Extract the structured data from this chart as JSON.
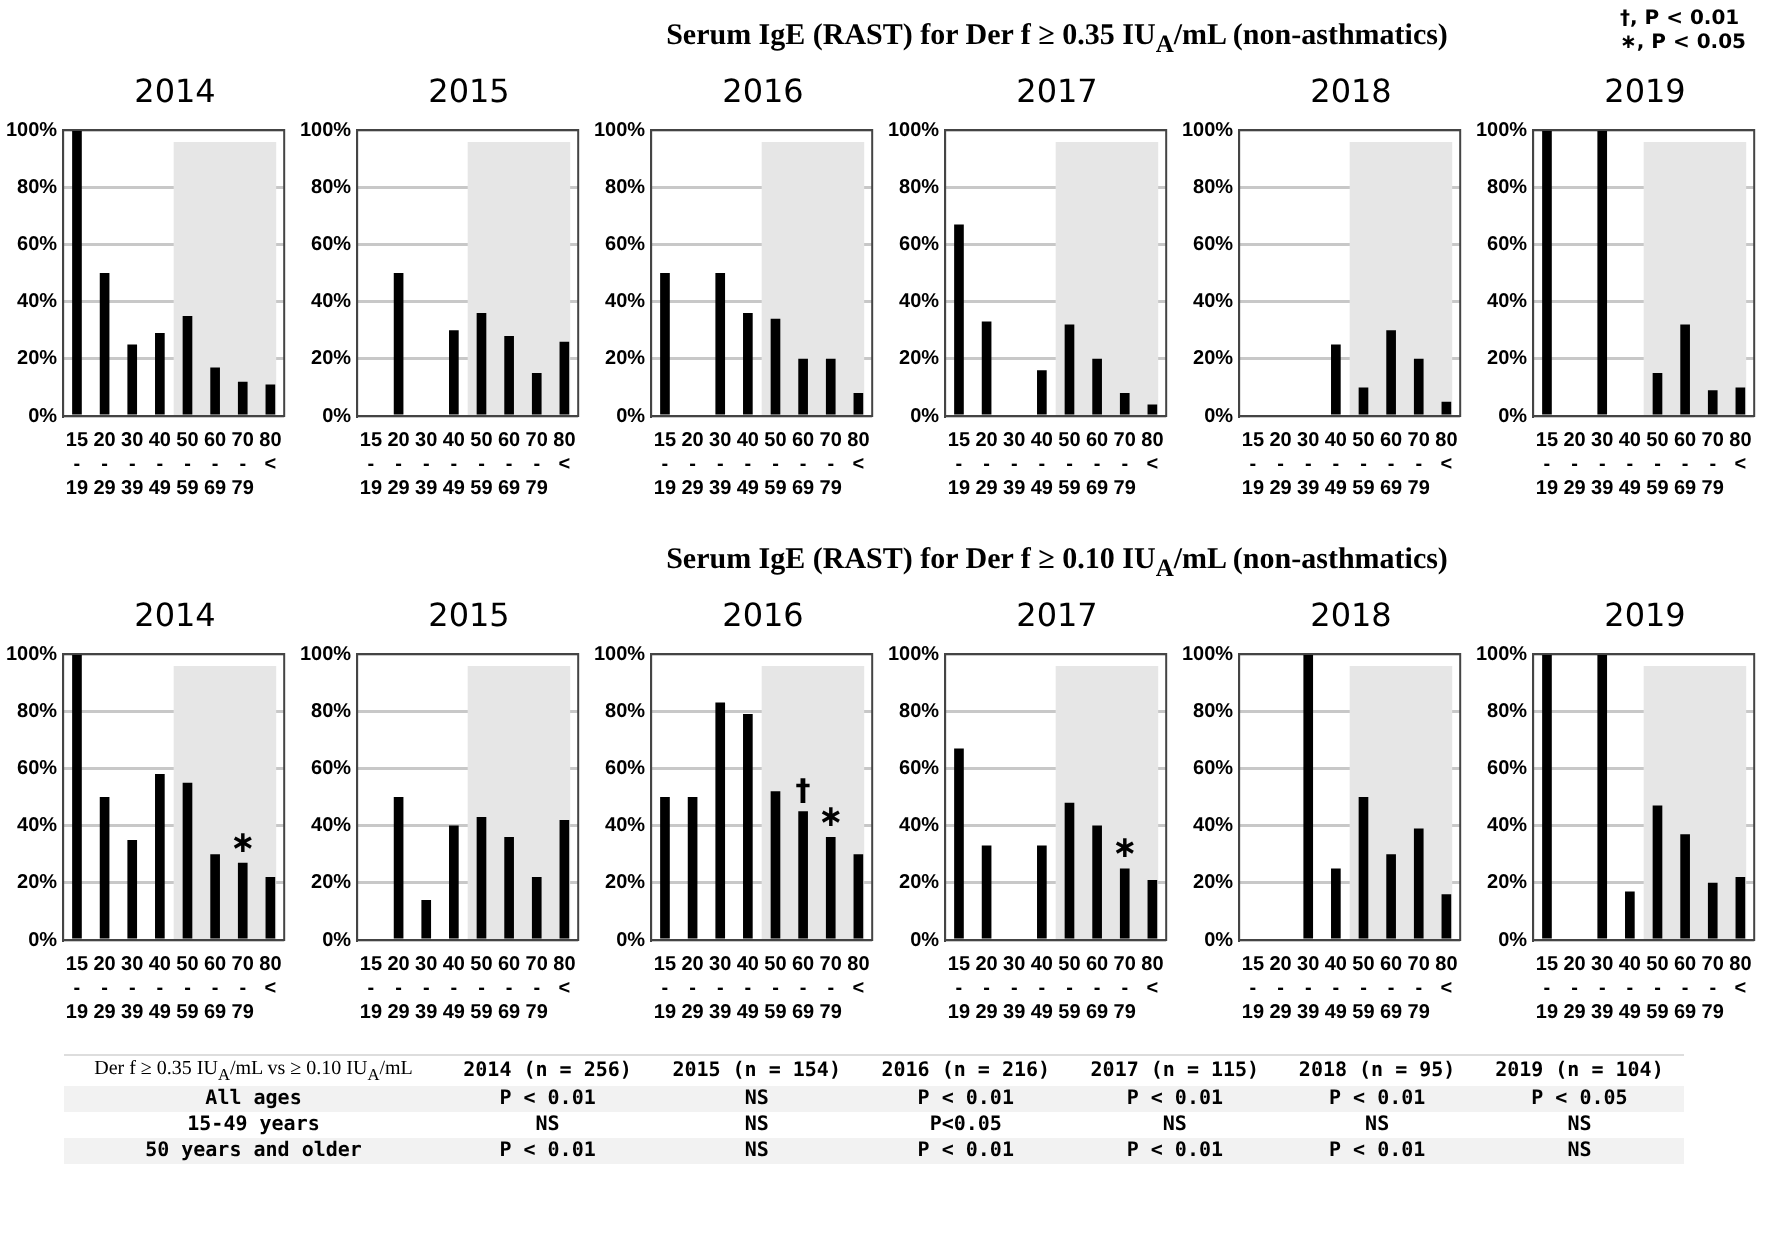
{
  "chart_data": [
    {
      "type": "bar",
      "title": "2014",
      "categories": [
        "15-19",
        "20-29",
        "30-39",
        "40-49",
        "50-59",
        "60-69",
        "70-79",
        "80<"
      ],
      "values": [
        100,
        50,
        25,
        29,
        35,
        17,
        12,
        11
      ],
      "color": "#000000",
      "ylim": [
        0,
        100
      ],
      "yticks": [
        {
          "value": 0,
          "label": "0%"
        },
        {
          "value": 20,
          "label": "20%"
        },
        {
          "value": 40,
          "label": "40%"
        },
        {
          "value": 60,
          "label": "60%"
        },
        {
          "value": 80,
          "label": "80%"
        },
        {
          "value": 100,
          "label": "100%"
        }
      ],
      "grid": "y",
      "bands": [
        {
          "axis": "x",
          "from": "50-59",
          "to": "80<",
          "color": "#e6e6e6"
        }
      ]
    },
    {
      "type": "bar",
      "title": "2015",
      "categories": [
        "15-19",
        "20-29",
        "30-39",
        "40-49",
        "50-59",
        "60-69",
        "70-79",
        "80<"
      ],
      "values": [
        0,
        50,
        0,
        30,
        36,
        28,
        15,
        26
      ],
      "color": "#000000",
      "ylim": [
        0,
        100
      ],
      "yticks": [
        {
          "value": 0,
          "label": "0%"
        },
        {
          "value": 20,
          "label": "20%"
        },
        {
          "value": 40,
          "label": "40%"
        },
        {
          "value": 60,
          "label": "60%"
        },
        {
          "value": 80,
          "label": "80%"
        },
        {
          "value": 100,
          "label": "100%"
        }
      ],
      "grid": "y",
      "bands": [
        {
          "axis": "x",
          "from": "50-59",
          "to": "80<",
          "color": "#e6e6e6"
        }
      ]
    },
    {
      "type": "bar",
      "title": "2016",
      "categories": [
        "15-19",
        "20-29",
        "30-39",
        "40-49",
        "50-59",
        "60-69",
        "70-79",
        "80<"
      ],
      "values": [
        50,
        0,
        50,
        36,
        34,
        20,
        20,
        8
      ],
      "color": "#000000",
      "ylim": [
        0,
        100
      ],
      "yticks": [
        {
          "value": 0,
          "label": "0%"
        },
        {
          "value": 20,
          "label": "20%"
        },
        {
          "value": 40,
          "label": "40%"
        },
        {
          "value": 60,
          "label": "60%"
        },
        {
          "value": 80,
          "label": "80%"
        },
        {
          "value": 100,
          "label": "100%"
        }
      ],
      "grid": "y",
      "bands": [
        {
          "axis": "x",
          "from": "50-59",
          "to": "80<",
          "color": "#e6e6e6"
        }
      ]
    },
    {
      "type": "bar",
      "title": "2017",
      "subtitle": "Serum IgE (RAST) for Der f ≥ 0.35 IU$_{A}$/mL (non-asthmatics)",
      "categories": [
        "15-19",
        "20-29",
        "30-39",
        "40-49",
        "50-59",
        "60-69",
        "70-79",
        "80<"
      ],
      "values": [
        67,
        33,
        0,
        16,
        32,
        20,
        8,
        4
      ],
      "color": "#000000",
      "ylim": [
        0,
        100
      ],
      "yticks": [
        {
          "value": 0,
          "label": "0%"
        },
        {
          "value": 20,
          "label": "20%"
        },
        {
          "value": 40,
          "label": "40%"
        },
        {
          "value": 60,
          "label": "60%"
        },
        {
          "value": 80,
          "label": "80%"
        },
        {
          "value": 100,
          "label": "100%"
        }
      ],
      "grid": "y",
      "bands": [
        {
          "axis": "x",
          "from": "50-59",
          "to": "80<",
          "color": "#e6e6e6"
        }
      ]
    },
    {
      "type": "bar",
      "title": "2018",
      "categories": [
        "15-19",
        "20-29",
        "30-39",
        "40-49",
        "50-59",
        "60-69",
        "70-79",
        "80<"
      ],
      "values": [
        0,
        0,
        0,
        25,
        10,
        30,
        20,
        5
      ],
      "color": "#000000",
      "ylim": [
        0,
        100
      ],
      "yticks": [
        {
          "value": 0,
          "label": "0%"
        },
        {
          "value": 20,
          "label": "20%"
        },
        {
          "value": 40,
          "label": "40%"
        },
        {
          "value": 60,
          "label": "60%"
        },
        {
          "value": 80,
          "label": "80%"
        },
        {
          "value": 100,
          "label": "100%"
        }
      ],
      "grid": "y",
      "bands": [
        {
          "axis": "x",
          "from": "50-59",
          "to": "80<",
          "color": "#e6e6e6"
        }
      ]
    },
    {
      "type": "bar",
      "title": "2019",
      "annotations": [
        "†, P < 0.01",
        "∗, P < 0.05"
      ],
      "categories": [
        "15-19",
        "20-29",
        "30-39",
        "40-49",
        "50-59",
        "60-69",
        "70-79",
        "80<"
      ],
      "values": [
        100,
        0,
        100,
        0,
        15,
        32,
        9,
        10
      ],
      "color": "#000000",
      "ylim": [
        0,
        100
      ],
      "yticks": [
        {
          "value": 0,
          "label": "0%"
        },
        {
          "value": 20,
          "label": "20%"
        },
        {
          "value": 40,
          "label": "40%"
        },
        {
          "value": 60,
          "label": "60%"
        },
        {
          "value": 80,
          "label": "80%"
        },
        {
          "value": 100,
          "label": "100%"
        }
      ],
      "grid": "y",
      "bands": [
        {
          "axis": "x",
          "from": "50-59",
          "to": "80<",
          "color": "#e6e6e6"
        }
      ]
    },
    {
      "type": "bar",
      "title": "2014",
      "annotations": [
        {
          "text": "∗",
          "x": "70-79",
          "y": 27
        }
      ],
      "categories": [
        "15-19",
        "20-29",
        "30-39",
        "40-49",
        "50-59",
        "60-69",
        "70-79",
        "80<"
      ],
      "values": [
        100,
        50,
        35,
        58,
        55,
        30,
        27,
        22
      ],
      "color": "#000000",
      "ylim": [
        0,
        100
      ],
      "yticks": [
        {
          "value": 0,
          "label": "0%"
        },
        {
          "value": 20,
          "label": "20%"
        },
        {
          "value": 40,
          "label": "40%"
        },
        {
          "value": 60,
          "label": "60%"
        },
        {
          "value": 80,
          "label": "80%"
        },
        {
          "value": 100,
          "label": "100%"
        }
      ],
      "grid": "y",
      "bands": [
        {
          "axis": "x",
          "from": "50-59",
          "to": "80<",
          "color": "#e6e6e6"
        }
      ]
    },
    {
      "type": "bar",
      "title": "2015",
      "categories": [
        "15-19",
        "20-29",
        "30-39",
        "40-49",
        "50-59",
        "60-69",
        "70-79",
        "80<"
      ],
      "values": [
        0,
        50,
        14,
        40,
        43,
        36,
        22,
        42
      ],
      "color": "#000000",
      "ylim": [
        0,
        100
      ],
      "yticks": [
        {
          "value": 0,
          "label": "0%"
        },
        {
          "value": 20,
          "label": "20%"
        },
        {
          "value": 40,
          "label": "40%"
        },
        {
          "value": 60,
          "label": "60%"
        },
        {
          "value": 80,
          "label": "80%"
        },
        {
          "value": 100,
          "label": "100%"
        }
      ],
      "grid": "y",
      "bands": [
        {
          "axis": "x",
          "from": "50-59",
          "to": "80<",
          "color": "#e6e6e6"
        }
      ]
    },
    {
      "type": "bar",
      "title": "2016",
      "annotations": [
        {
          "text": "†",
          "x": "60-69",
          "y": 45
        },
        {
          "text": "∗",
          "x": "70-79",
          "y": 36
        }
      ],
      "categories": [
        "15-19",
        "20-29",
        "30-39",
        "40-49",
        "50-59",
        "60-69",
        "70-79",
        "80<"
      ],
      "values": [
        50,
        50,
        83,
        79,
        52,
        45,
        36,
        30
      ],
      "color": "#000000",
      "ylim": [
        0,
        100
      ],
      "yticks": [
        {
          "value": 0,
          "label": "0%"
        },
        {
          "value": 20,
          "label": "20%"
        },
        {
          "value": 40,
          "label": "40%"
        },
        {
          "value": 60,
          "label": "60%"
        },
        {
          "value": 80,
          "label": "80%"
        },
        {
          "value": 100,
          "label": "100%"
        }
      ],
      "grid": "y",
      "bands": [
        {
          "axis": "x",
          "from": "50-59",
          "to": "80<",
          "color": "#e6e6e6"
        }
      ]
    },
    {
      "type": "bar",
      "title": "2017",
      "subtitle": "Serum IgE (RAST) for Der f ≥ 0.10 IU$_{A}$/mL (non-asthmatics)",
      "annotations": [
        {
          "text": "∗",
          "x": "70-79",
          "y": 25
        }
      ],
      "categories": [
        "15-19",
        "20-29",
        "30-39",
        "40-49",
        "50-59",
        "60-69",
        "70-79",
        "80<"
      ],
      "values": [
        67,
        33,
        0,
        33,
        48,
        40,
        25,
        21
      ],
      "color": "#000000",
      "ylim": [
        0,
        100
      ],
      "yticks": [
        {
          "value": 0,
          "label": "0%"
        },
        {
          "value": 20,
          "label": "20%"
        },
        {
          "value": 40,
          "label": "40%"
        },
        {
          "value": 60,
          "label": "60%"
        },
        {
          "value": 80,
          "label": "80%"
        },
        {
          "value": 100,
          "label": "100%"
        }
      ],
      "grid": "y",
      "bands": [
        {
          "axis": "x",
          "from": "50-59",
          "to": "80<",
          "color": "#e6e6e6"
        }
      ]
    },
    {
      "type": "bar",
      "title": "2018",
      "categories": [
        "15-19",
        "20-29",
        "30-39",
        "40-49",
        "50-59",
        "60-69",
        "70-79",
        "80<"
      ],
      "values": [
        0,
        0,
        100,
        25,
        50,
        30,
        39,
        16
      ],
      "color": "#000000",
      "ylim": [
        0,
        100
      ],
      "yticks": [
        {
          "value": 0,
          "label": "0%"
        },
        {
          "value": 20,
          "label": "20%"
        },
        {
          "value": 40,
          "label": "40%"
        },
        {
          "value": 60,
          "label": "60%"
        },
        {
          "value": 80,
          "label": "80%"
        },
        {
          "value": 100,
          "label": "100%"
        }
      ],
      "grid": "y",
      "bands": [
        {
          "axis": "x",
          "from": "50-59",
          "to": "80<",
          "color": "#e6e6e6"
        }
      ]
    },
    {
      "type": "bar",
      "title": "2019",
      "categories": [
        "15-19",
        "20-29",
        "30-39",
        "40-49",
        "50-59",
        "60-69",
        "70-79",
        "80<"
      ],
      "values": [
        100,
        0,
        100,
        17,
        47,
        37,
        20,
        22
      ],
      "color": "#000000",
      "ylim": [
        0,
        100
      ],
      "yticks": [
        {
          "value": 0,
          "label": "0%"
        },
        {
          "value": 20,
          "label": "20%"
        },
        {
          "value": 40,
          "label": "40%"
        },
        {
          "value": 60,
          "label": "60%"
        },
        {
          "value": 80,
          "label": "80%"
        },
        {
          "value": 100,
          "label": "100%"
        }
      ],
      "grid": "y",
      "bands": [
        {
          "axis": "x",
          "from": "50-59",
          "to": "80<",
          "color": "#e6e6e6"
        }
      ]
    },
    {
      "type": "other",
      "title": "Der f ≥ 0.35 IU$_{A}$/mL  vs  ≥ 0.10 IU$_{A}$/mL",
      "categories": [
        "2014 (n = 256)",
        "2015 (n = 154)",
        "2016 (n = 216)",
        "2017 (n = 115)",
        "2018 (n = 95)",
        "2019 (n = 104)"
      ],
      "y_categories": [
        "All ages",
        "15-49 years",
        "50 years and older"
      ],
      "cell_labels": [
        [
          "P < 0.01",
          "NS",
          "P < 0.01",
          "P < 0.01",
          "P < 0.01",
          "P < 0.05"
        ],
        [
          "NS",
          "NS",
          "P<0.05",
          "NS",
          "NS",
          "NS"
        ],
        [
          "P < 0.01",
          "NS",
          "P < 0.01",
          "P < 0.01",
          "P < 0.01",
          "NS"
        ]
      ]
    }
  ]
}
